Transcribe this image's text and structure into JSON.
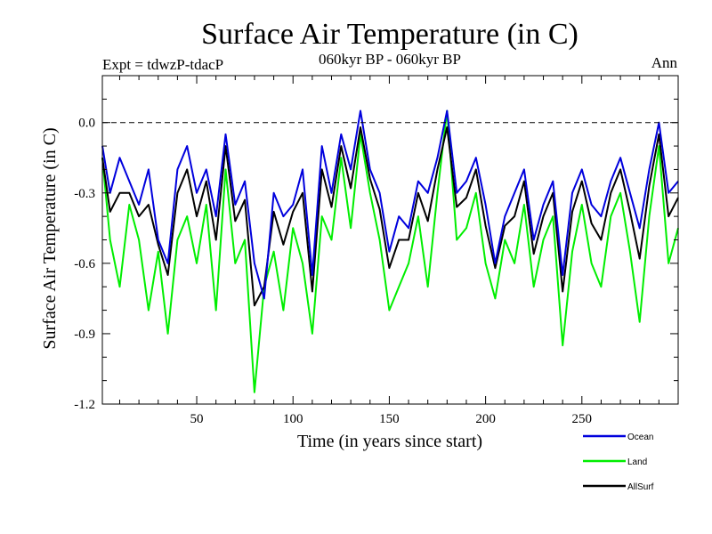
{
  "chart_data": {
    "type": "line",
    "title": "Surface Air Temperature (in C)",
    "subtitle": "060kyr BP - 060kyr BP",
    "left_annotation": "Expt = tdwzP-tdacP",
    "right_annotation": "Ann",
    "xlabel": "Time (in years since start)",
    "ylabel": "Surface Air Temperature (in C)",
    "xlim": [
      1,
      300
    ],
    "ylim": [
      -1.2,
      0.2
    ],
    "xticks": [
      50,
      100,
      150,
      200,
      250
    ],
    "yticks": [
      0.0,
      -0.3,
      -0.6,
      -0.9,
      -1.2
    ],
    "ytick_labels": [
      "0.0",
      "-0.3",
      "-0.6",
      "-0.9",
      "-1.2"
    ],
    "reference_line": 0.0,
    "grid": false,
    "legend_position": "bottom-right",
    "series": [
      {
        "name": "Ocean",
        "color": "#0000dd",
        "x": [
          1,
          5,
          10,
          15,
          20,
          25,
          30,
          35,
          40,
          45,
          50,
          55,
          60,
          65,
          70,
          75,
          80,
          85,
          90,
          95,
          100,
          105,
          110,
          115,
          120,
          125,
          130,
          135,
          140,
          145,
          150,
          155,
          160,
          165,
          170,
          175,
          180,
          185,
          190,
          195,
          200,
          205,
          210,
          215,
          220,
          225,
          230,
          235,
          240,
          245,
          250,
          255,
          260,
          265,
          270,
          275,
          280,
          285,
          290,
          295,
          300
        ],
        "values": [
          -0.1,
          -0.3,
          -0.15,
          -0.25,
          -0.35,
          -0.2,
          -0.5,
          -0.6,
          -0.2,
          -0.1,
          -0.3,
          -0.2,
          -0.4,
          -0.05,
          -0.35,
          -0.25,
          -0.6,
          -0.75,
          -0.3,
          -0.4,
          -0.35,
          -0.2,
          -0.65,
          -0.1,
          -0.3,
          -0.05,
          -0.2,
          0.05,
          -0.2,
          -0.3,
          -0.55,
          -0.4,
          -0.45,
          -0.25,
          -0.3,
          -0.15,
          0.05,
          -0.3,
          -0.25,
          -0.15,
          -0.35,
          -0.6,
          -0.4,
          -0.3,
          -0.2,
          -0.5,
          -0.35,
          -0.25,
          -0.65,
          -0.3,
          -0.2,
          -0.35,
          -0.4,
          -0.25,
          -0.15,
          -0.3,
          -0.45,
          -0.2,
          0.0,
          -0.3,
          -0.25
        ]
      },
      {
        "name": "Land",
        "color": "#00ee00",
        "x": [
          1,
          5,
          10,
          15,
          20,
          25,
          30,
          35,
          40,
          45,
          50,
          55,
          60,
          65,
          70,
          75,
          80,
          85,
          90,
          95,
          100,
          105,
          110,
          115,
          120,
          125,
          130,
          135,
          140,
          145,
          150,
          155,
          160,
          165,
          170,
          175,
          180,
          185,
          190,
          195,
          200,
          205,
          210,
          215,
          220,
          225,
          230,
          235,
          240,
          245,
          250,
          255,
          260,
          265,
          270,
          275,
          280,
          285,
          290,
          295,
          300
        ],
        "values": [
          -0.15,
          -0.5,
          -0.7,
          -0.35,
          -0.5,
          -0.8,
          -0.55,
          -0.9,
          -0.5,
          -0.4,
          -0.6,
          -0.35,
          -0.8,
          -0.2,
          -0.6,
          -0.5,
          -1.15,
          -0.7,
          -0.55,
          -0.8,
          -0.45,
          -0.6,
          -0.9,
          -0.4,
          -0.5,
          -0.15,
          -0.45,
          -0.05,
          -0.3,
          -0.5,
          -0.8,
          -0.7,
          -0.6,
          -0.4,
          -0.7,
          -0.3,
          0.05,
          -0.5,
          -0.45,
          -0.3,
          -0.6,
          -0.75,
          -0.5,
          -0.6,
          -0.35,
          -0.7,
          -0.5,
          -0.4,
          -0.95,
          -0.55,
          -0.35,
          -0.6,
          -0.7,
          -0.4,
          -0.3,
          -0.55,
          -0.85,
          -0.4,
          -0.1,
          -0.6,
          -0.45
        ]
      },
      {
        "name": "AllSurf",
        "color": "#000000",
        "x": [
          1,
          5,
          10,
          15,
          20,
          25,
          30,
          35,
          40,
          45,
          50,
          55,
          60,
          65,
          70,
          75,
          80,
          85,
          90,
          95,
          100,
          105,
          110,
          115,
          120,
          125,
          130,
          135,
          140,
          145,
          150,
          155,
          160,
          165,
          170,
          175,
          180,
          185,
          190,
          195,
          200,
          205,
          210,
          215,
          220,
          225,
          230,
          235,
          240,
          245,
          250,
          255,
          260,
          265,
          270,
          275,
          280,
          285,
          290,
          295,
          300
        ],
        "values": [
          -0.15,
          -0.38,
          -0.3,
          -0.3,
          -0.4,
          -0.35,
          -0.52,
          -0.65,
          -0.3,
          -0.2,
          -0.4,
          -0.25,
          -0.5,
          -0.1,
          -0.42,
          -0.33,
          -0.78,
          -0.7,
          -0.38,
          -0.52,
          -0.38,
          -0.3,
          -0.72,
          -0.2,
          -0.36,
          -0.1,
          -0.28,
          -0.02,
          -0.24,
          -0.37,
          -0.62,
          -0.5,
          -0.5,
          -0.3,
          -0.42,
          -0.2,
          -0.02,
          -0.36,
          -0.32,
          -0.2,
          -0.44,
          -0.62,
          -0.44,
          -0.4,
          -0.25,
          -0.56,
          -0.4,
          -0.3,
          -0.72,
          -0.38,
          -0.25,
          -0.43,
          -0.5,
          -0.3,
          -0.2,
          -0.38,
          -0.58,
          -0.27,
          -0.05,
          -0.4,
          -0.32
        ]
      }
    ]
  }
}
